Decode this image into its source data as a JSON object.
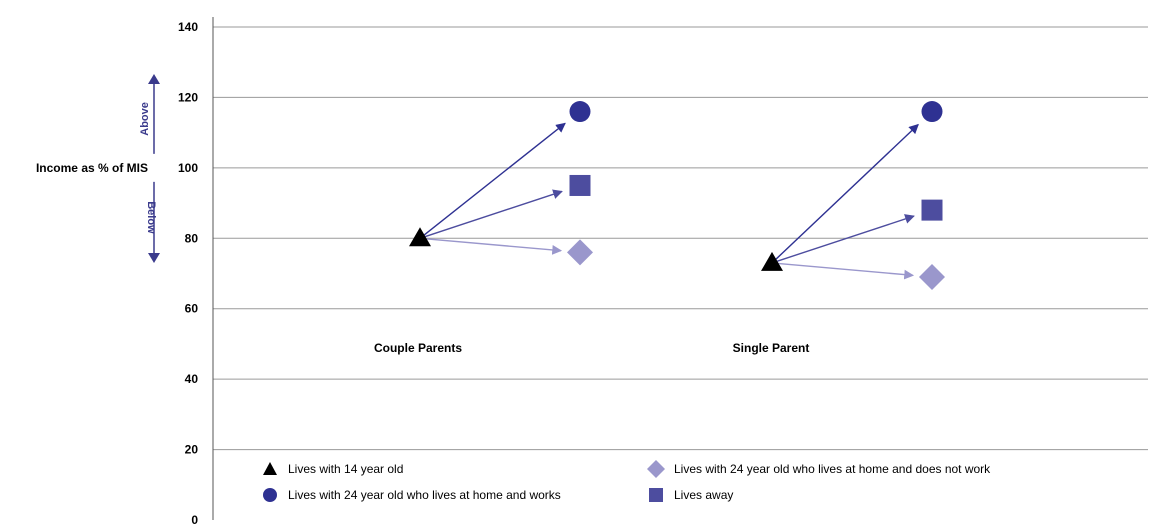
{
  "chart_data": {
    "type": "scatter",
    "title": "",
    "ylabel": "Income as % of MIS",
    "above_label": "Above",
    "below_label": "Below",
    "reference_line": 100,
    "ylim": [
      0,
      140
    ],
    "yticks": [
      0,
      20,
      40,
      60,
      80,
      100,
      120,
      140
    ],
    "grid": true,
    "groups": [
      {
        "label": "Couple Parents",
        "points": {
          "lives_with_14": 80,
          "lives_with_24_works": 116,
          "lives_away": 95,
          "lives_with_24_not_working": 76
        }
      },
      {
        "label": "Single Parent",
        "points": {
          "lives_with_14": 73,
          "lives_with_24_works": 116,
          "lives_away": 88,
          "lives_with_24_not_working": 69
        }
      }
    ],
    "series": [
      {
        "key": "lives_with_14",
        "name": "Lives with 14 year old",
        "marker": "triangle",
        "color": "#000000"
      },
      {
        "key": "lives_with_24_works",
        "name": "Lives with 24 year old who lives at home and works",
        "marker": "circle",
        "color": "#2e3192"
      },
      {
        "key": "lives_with_24_not_working",
        "name": "Lives with 24 year old who lives at home and does not work",
        "marker": "diamond",
        "color": "#9a97cc"
      },
      {
        "key": "lives_away",
        "name": "Lives away",
        "marker": "square",
        "color": "#4d4d9f"
      }
    ],
    "arrow_colors": {
      "lives_with_24_works": "#2e3192",
      "lives_away": "#4d4d9f",
      "lives_with_24_not_working": "#9a97cc"
    },
    "legend_position": "bottom"
  }
}
